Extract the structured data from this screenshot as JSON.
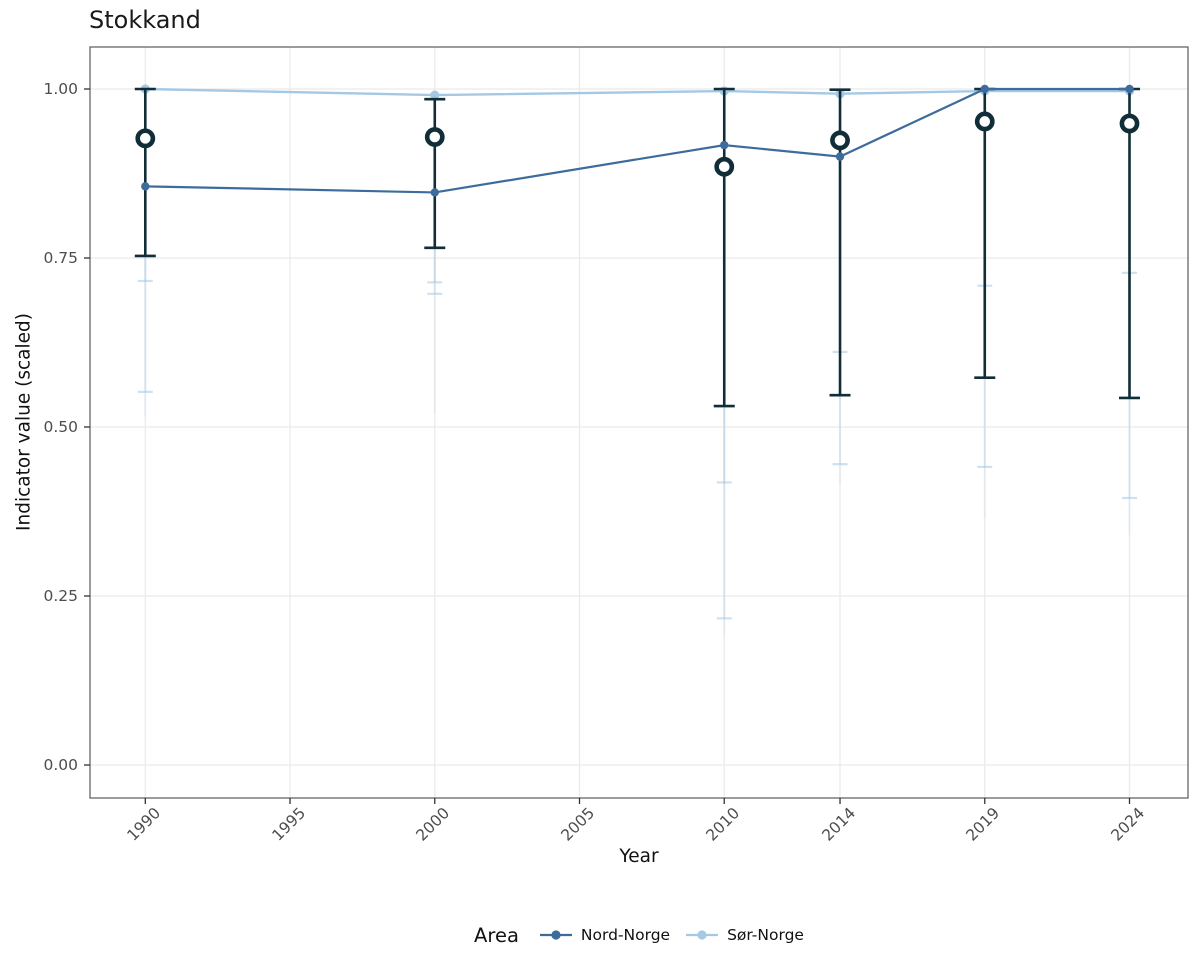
{
  "title": "Stokkand",
  "axes": {
    "x_label": "Year",
    "y_label": "Indicator value (scaled)",
    "x_ticks": [
      1990,
      1995,
      2000,
      2005,
      2010,
      2014,
      2019,
      2024
    ],
    "y_ticks": [
      "0.00",
      "0.25",
      "0.50",
      "0.75",
      "1.00"
    ]
  },
  "legend": {
    "title": "Area",
    "items": [
      {
        "label": "Nord-Norge",
        "color": "#3D6C9C"
      },
      {
        "label": "Sør-Norge",
        "color": "#A5C9E5"
      }
    ]
  },
  "chart_data": {
    "type": "line",
    "title": "Stokkand",
    "xlabel": "Year",
    "ylabel": "Indicator value (scaled)",
    "x": [
      1990,
      2000,
      2010,
      2014,
      2019,
      2024
    ],
    "xlim": [
      1988,
      2026
    ],
    "ylim": [
      -0.05,
      1.06
    ],
    "grid": true,
    "legend_position": "bottom",
    "series": [
      {
        "name": "Nord-Norge",
        "color": "#3D6C9C",
        "values": [
          0.856,
          0.847,
          0.917,
          0.9,
          1.0,
          1.0
        ]
      },
      {
        "name": "Sør-Norge",
        "color": "#A5C9E5",
        "values": [
          1.0,
          0.991,
          0.997,
          0.993,
          0.997,
          0.997
        ]
      }
    ],
    "ring_markers": {
      "color": "#112E38",
      "values": [
        0.927,
        0.929,
        0.885,
        0.924,
        0.952,
        0.949
      ]
    },
    "dark_intervals": {
      "color": "#112E38",
      "lo": [
        0.753,
        0.765,
        0.531,
        0.547,
        0.573,
        0.543
      ],
      "hi": [
        1.0,
        0.985,
        1.0,
        0.999,
        1.0,
        1.0
      ]
    },
    "light_intervals": {
      "color": "#A5C9E5",
      "cap1": [
        0.716,
        0.714,
        0.418,
        0.611,
        0.709,
        0.728
      ],
      "cap2": [
        0.552,
        0.697,
        0.217,
        0.445,
        0.441,
        0.395
      ],
      "tail": [
        0.515,
        0.52,
        0.19,
        0.415,
        0.365,
        0.34
      ]
    }
  }
}
